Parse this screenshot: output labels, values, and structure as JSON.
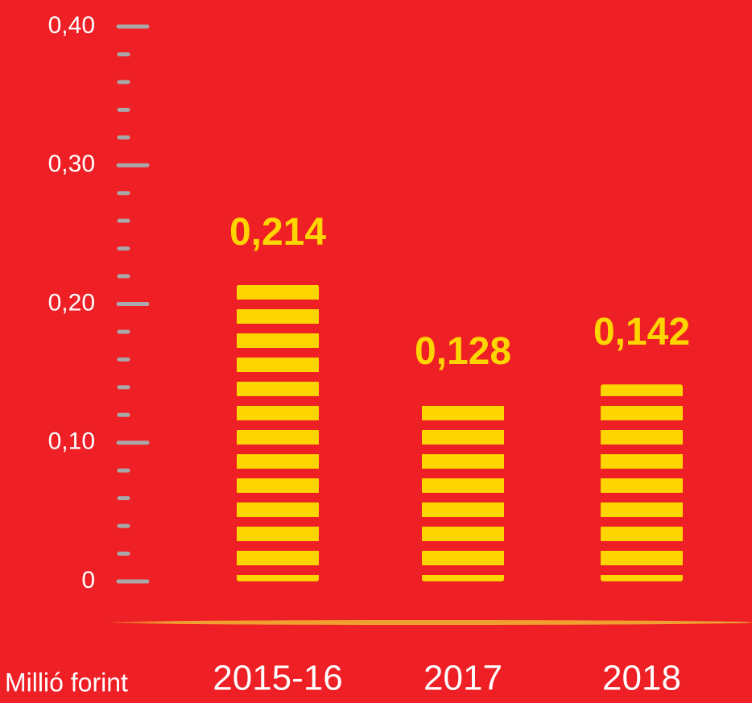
{
  "chart_data": {
    "type": "bar",
    "categories": [
      "2015-16",
      "2017",
      "2018"
    ],
    "values": [
      0.214,
      0.128,
      0.142
    ],
    "value_labels": [
      "0,214",
      "0,128",
      "0,142"
    ],
    "color": "#ffd500",
    "ylim": [
      0,
      0.4
    ],
    "yticks": [
      0,
      {
        "value": 0.1,
        "label": "0,10"
      },
      {
        "value": 0.2,
        "label": "0,20"
      },
      {
        "value": 0.3,
        "label": "0,30"
      },
      {
        "value": 0.4,
        "label": "0,40"
      }
    ],
    "y_axis_label": "Millió forint",
    "grid": false
  }
}
